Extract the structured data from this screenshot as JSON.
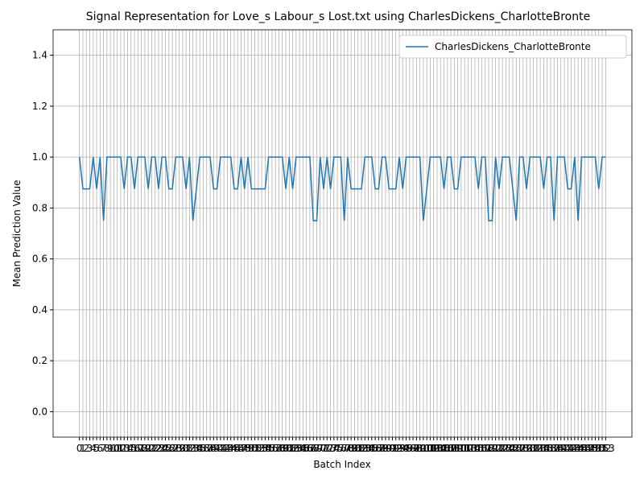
{
  "chart_data": {
    "type": "line",
    "title": "Signal Representation for Love_s Labour_s Lost.txt using CharlesDickens_CharlotteBronte",
    "xlabel": "Batch Index",
    "ylabel": "Mean Prediction Value",
    "x": [
      0,
      1,
      2,
      3,
      4,
      5,
      6,
      7,
      8,
      9,
      10,
      11,
      12,
      13,
      14,
      15,
      16,
      17,
      18,
      19,
      20,
      21,
      22,
      23,
      24,
      25,
      26,
      27,
      28,
      29,
      30,
      31,
      32,
      33,
      34,
      35,
      36,
      37,
      38,
      39,
      40,
      41,
      42,
      43,
      44,
      45,
      46,
      47,
      48,
      49,
      50,
      51,
      52,
      53,
      54,
      55,
      56,
      57,
      58,
      59,
      60,
      61,
      62,
      63,
      64,
      65,
      66,
      67,
      68,
      69,
      70,
      71,
      72,
      73,
      74,
      75,
      76,
      77,
      78,
      79,
      80,
      81,
      82,
      83,
      84,
      85,
      86,
      87,
      88,
      89,
      90,
      91,
      92,
      93,
      94,
      95,
      96,
      97,
      98,
      99,
      100,
      101,
      102,
      103,
      104,
      105,
      106,
      107,
      108,
      109,
      110,
      111,
      112,
      113,
      114,
      115,
      116,
      117,
      118,
      119,
      120,
      121,
      122,
      123,
      124,
      125,
      126,
      127,
      128,
      129,
      130,
      131,
      132,
      133,
      134,
      135,
      136,
      137,
      138,
      139,
      140,
      141,
      142,
      143,
      144,
      145,
      146,
      147,
      148,
      149,
      150,
      151,
      152,
      153
    ],
    "series": [
      {
        "name": "CharlesDickens_CharlotteBronte",
        "color": "#1f77b4",
        "values": [
          1,
          0.875,
          0.875,
          0.875,
          1,
          0.875,
          1,
          0.75,
          1,
          1,
          1,
          1,
          1,
          0.875,
          1,
          1,
          0.875,
          1,
          1,
          1,
          0.875,
          1,
          1,
          0.875,
          1,
          1,
          0.875,
          0.875,
          1,
          1,
          1,
          0.875,
          1,
          0.75,
          0.875,
          1,
          1,
          1,
          1,
          0.875,
          0.875,
          1,
          1,
          1,
          1,
          0.875,
          0.875,
          1,
          0.875,
          1,
          0.875,
          0.875,
          0.875,
          0.875,
          0.875,
          1,
          1,
          1,
          1,
          1,
          0.875,
          1,
          0.875,
          1,
          1,
          1,
          1,
          1,
          0.75,
          0.75,
          1,
          0.875,
          1,
          0.875,
          1,
          1,
          1,
          0.75,
          1,
          0.875,
          0.875,
          0.875,
          0.875,
          1,
          1,
          1,
          0.875,
          0.875,
          1,
          1,
          0.875,
          0.875,
          0.875,
          1,
          0.875,
          1,
          1,
          1,
          1,
          1,
          0.75,
          0.875,
          1,
          1,
          1,
          1,
          0.875,
          1,
          1,
          0.875,
          0.875,
          1,
          1,
          1,
          1,
          1,
          0.875,
          1,
          1,
          0.75,
          0.75,
          1,
          0.875,
          1,
          1,
          1,
          0.875,
          0.75,
          1,
          1,
          0.875,
          1,
          1,
          1,
          1,
          0.875,
          1,
          1,
          0.75,
          1,
          1,
          1,
          0.875,
          0.875,
          1,
          0.75,
          1,
          1,
          1,
          1,
          1,
          0.875,
          1,
          1
        ]
      }
    ],
    "xlim": [
      -7.65,
      160.65
    ],
    "xticks": [
      0,
      1,
      2,
      3,
      4,
      5,
      6,
      7,
      8,
      9,
      10,
      11,
      12,
      13,
      14,
      15,
      16,
      17,
      18,
      19,
      20,
      21,
      22,
      23,
      24,
      25,
      26,
      27,
      28,
      29,
      30,
      31,
      32,
      33,
      34,
      35,
      36,
      37,
      38,
      39,
      40,
      41,
      42,
      43,
      44,
      45,
      46,
      47,
      48,
      49,
      50,
      51,
      52,
      53,
      54,
      55,
      56,
      57,
      58,
      59,
      60,
      61,
      62,
      63,
      64,
      65,
      66,
      67,
      68,
      69,
      70,
      71,
      72,
      73,
      74,
      75,
      76,
      77,
      78,
      79,
      80,
      81,
      82,
      83,
      84,
      85,
      86,
      87,
      88,
      89,
      90,
      91,
      92,
      93,
      94,
      95,
      96,
      97,
      98,
      99,
      100,
      101,
      102,
      103,
      104,
      105,
      106,
      107,
      108,
      109,
      110,
      111,
      112,
      113,
      114,
      115,
      116,
      117,
      118,
      119,
      120,
      121,
      122,
      123,
      124,
      125,
      126,
      127,
      128,
      129,
      130,
      131,
      132,
      133,
      134,
      135,
      136,
      137,
      138,
      139,
      140,
      141,
      142,
      143,
      144,
      145,
      146,
      147,
      148,
      149,
      150,
      151,
      152,
      153
    ],
    "ylim": [
      -0.1,
      1.5
    ],
    "yticks": [
      {
        "value": 0,
        "label": "0.0"
      },
      0.2,
      0.4,
      0.6,
      0.8,
      {
        "value": 1,
        "label": "1.0"
      },
      1.2,
      1.4
    ],
    "grid": true,
    "legend": "upper-right"
  }
}
